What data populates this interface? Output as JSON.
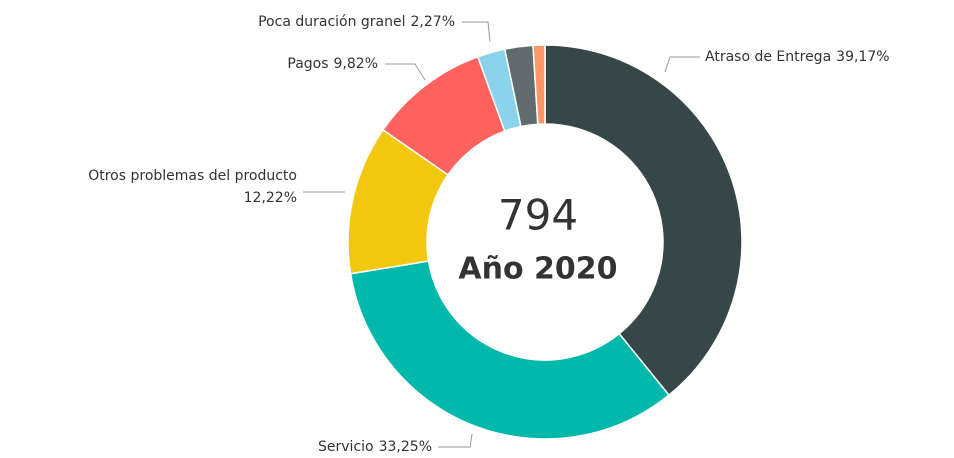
{
  "chart_data": {
    "type": "donut",
    "center_value": "794",
    "center_label": "Año 2020",
    "categories": [
      "Atraso de Entrega",
      "Servicio",
      "Otros problemas del producto",
      "Pagos",
      "Poca duración granel",
      null,
      null
    ],
    "values": [
      39.17,
      33.25,
      12.22,
      9.82,
      2.27,
      2.3,
      0.97
    ],
    "value_labels": [
      "39,17%",
      "33,25%",
      "12,22%",
      "9,82%",
      "2,27%",
      null,
      null
    ],
    "colors": [
      "#374649",
      "#01b8aa",
      "#f2c80f",
      "#fd625e",
      "#8ad4eb",
      "#5f6b6d",
      "#fe9666"
    ]
  }
}
